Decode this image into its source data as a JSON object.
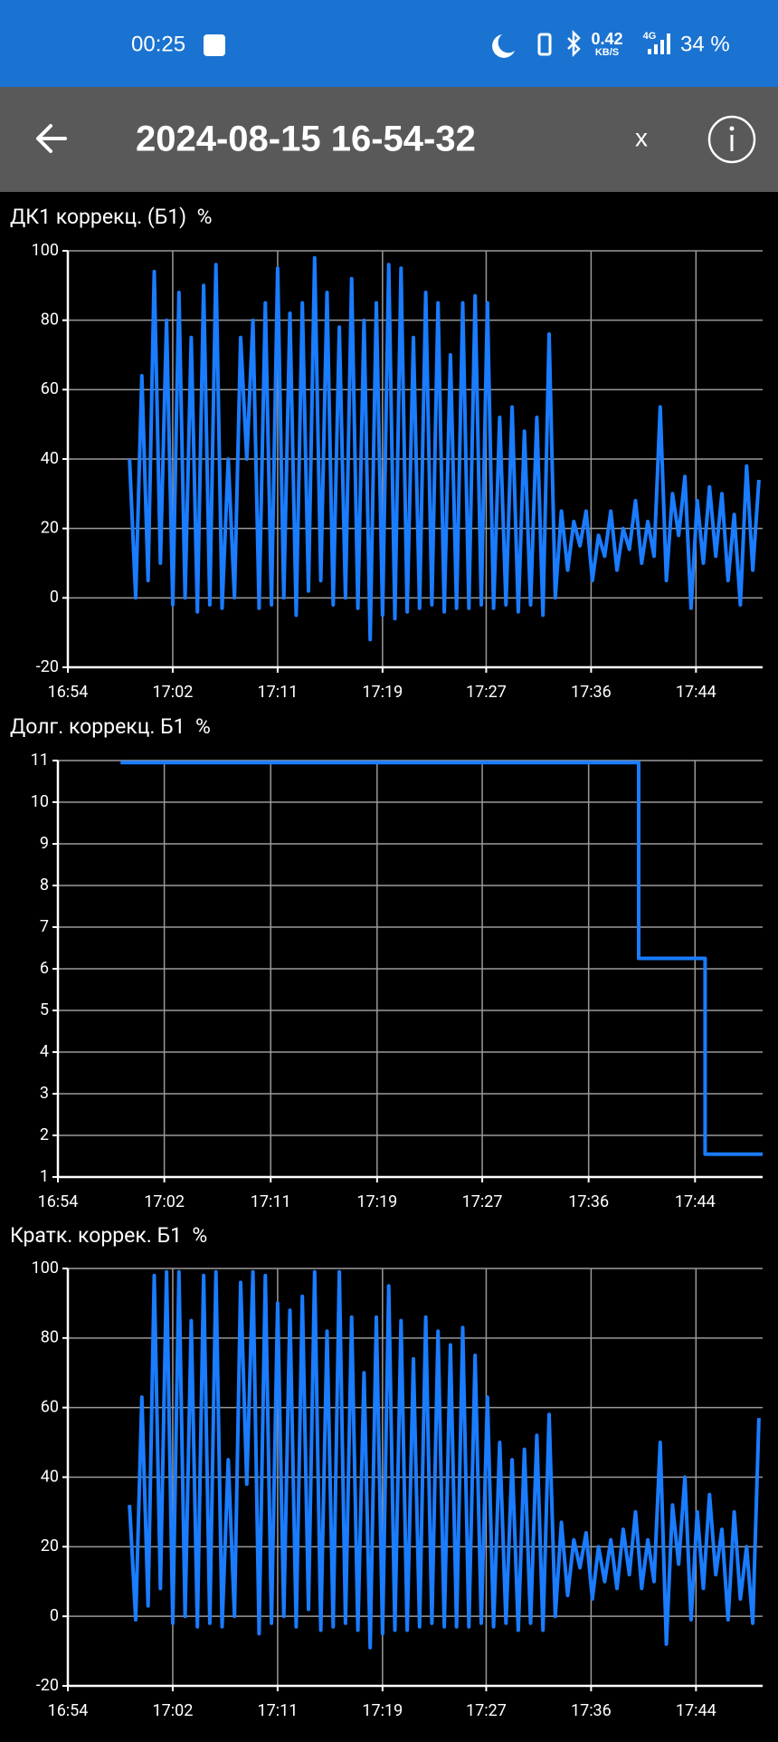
{
  "status_bar": {
    "time": "00:25",
    "speed": "0.42",
    "speed_unit": "KB/S",
    "network": "4G",
    "battery": "34 %"
  },
  "toolbar": {
    "title": "2024-08-15 16-54-32",
    "close": "x"
  },
  "chart_data": [
    {
      "type": "line",
      "title": "ДК1 коррекц. (Б1)  %",
      "x": [
        1019,
        1019.5,
        1020,
        1020.5,
        1021,
        1021.5,
        1022,
        1022.5,
        1023,
        1023.5,
        1024,
        1024.5,
        1025,
        1025.5,
        1026,
        1026.5,
        1027,
        1027.5,
        1028,
        1028.5,
        1029,
        1029.5,
        1030,
        1030.5,
        1031,
        1031.5,
        1032,
        1032.5,
        1033,
        1033.5,
        1034,
        1034.5,
        1035,
        1035.5,
        1036,
        1036.5,
        1037,
        1037.5,
        1038,
        1038.5,
        1039,
        1039.5,
        1040,
        1040.5,
        1041,
        1041.5,
        1042,
        1042.5,
        1043,
        1043.5,
        1044,
        1044.5,
        1045,
        1045.5,
        1046,
        1046.5,
        1047,
        1047.5,
        1048,
        1048.5,
        1049,
        1049.5,
        1050,
        1050.5,
        1051,
        1051.5,
        1052,
        1052.5,
        1053,
        1053.5,
        1054,
        1054.5,
        1055,
        1055.5,
        1056,
        1056.5,
        1057,
        1057.5,
        1058,
        1058.5,
        1059,
        1059.5,
        1060,
        1060.5,
        1061,
        1061.5,
        1062,
        1062.5,
        1063,
        1063.5,
        1064,
        1064.5,
        1065,
        1065.5,
        1066,
        1066.5,
        1067,
        1067.5,
        1068,
        1068.5,
        1069,
        1069.5,
        1070
      ],
      "series": [
        {
          "color": "#1a7cff",
          "values": [
            40,
            0,
            64,
            5,
            94,
            10,
            80,
            -2,
            88,
            0,
            75,
            -4,
            90,
            -2,
            96,
            -3,
            40,
            0,
            75,
            40,
            80,
            -3,
            85,
            -2,
            95,
            0,
            82,
            -5,
            85,
            2,
            98,
            5,
            88,
            -2,
            78,
            0,
            92,
            -3,
            80,
            -12,
            85,
            -5,
            96,
            -6,
            95,
            -4,
            75,
            -3,
            88,
            -2,
            85,
            -4,
            70,
            -3,
            85,
            -3,
            87,
            -2,
            85,
            -3,
            52,
            -2,
            55,
            -4,
            48,
            -2,
            52,
            -5,
            76,
            0,
            25,
            8,
            22,
            15,
            25,
            5,
            18,
            12,
            25,
            8,
            20,
            14,
            28,
            10,
            22,
            12,
            55,
            5,
            30,
            18,
            35,
            -3,
            28,
            10,
            32,
            12,
            30,
            5,
            24,
            -2,
            38,
            8,
            34
          ]
        }
      ],
      "xlim": [
        1014,
        1070.3
      ],
      "xticks": [
        {
          "value": 1014,
          "label": "16:54"
        },
        {
          "value": 1022.5,
          "label": "17:02"
        },
        {
          "value": 1031,
          "label": "17:11"
        },
        {
          "value": 1039.5,
          "label": "17:19"
        },
        {
          "value": 1047.9,
          "label": "17:27"
        },
        {
          "value": 1056.4,
          "label": "17:36"
        },
        {
          "value": 1064.9,
          "label": "17:44"
        }
      ],
      "ylim": [
        -20,
        100
      ],
      "yticks": [
        -20,
        0,
        20,
        40,
        60,
        80,
        100
      ],
      "grid": true
    },
    {
      "type": "line",
      "title": "Долг. коррекц. Б1  %",
      "x": [
        1019,
        1060.4,
        1060.4,
        1065.7,
        1065.7,
        1070.3
      ],
      "series": [
        {
          "color": "#1a7cff",
          "values": [
            10.95,
            10.95,
            6.25,
            6.25,
            1.55,
            1.55
          ]
        }
      ],
      "xlim": [
        1014,
        1070.3
      ],
      "xticks": [
        {
          "value": 1014,
          "label": "16:54"
        },
        {
          "value": 1022.5,
          "label": "17:02"
        },
        {
          "value": 1031,
          "label": "17:11"
        },
        {
          "value": 1039.5,
          "label": "17:19"
        },
        {
          "value": 1047.9,
          "label": "17:27"
        },
        {
          "value": 1056.4,
          "label": "17:36"
        },
        {
          "value": 1064.9,
          "label": "17:44"
        }
      ],
      "ylim": [
        1,
        11
      ],
      "yticks": [
        1,
        2,
        3,
        4,
        5,
        6,
        7,
        8,
        9,
        10,
        11
      ],
      "grid": true
    },
    {
      "type": "line",
      "title": "Кратк. коррек. Б1  %",
      "x": [
        1019,
        1019.5,
        1020,
        1020.5,
        1021,
        1021.5,
        1022,
        1022.5,
        1023,
        1023.5,
        1024,
        1024.5,
        1025,
        1025.5,
        1026,
        1026.5,
        1027,
        1027.5,
        1028,
        1028.5,
        1029,
        1029.5,
        1030,
        1030.5,
        1031,
        1031.5,
        1032,
        1032.5,
        1033,
        1033.5,
        1034,
        1034.5,
        1035,
        1035.5,
        1036,
        1036.5,
        1037,
        1037.5,
        1038,
        1038.5,
        1039,
        1039.5,
        1040,
        1040.5,
        1041,
        1041.5,
        1042,
        1042.5,
        1043,
        1043.5,
        1044,
        1044.5,
        1045,
        1045.5,
        1046,
        1046.5,
        1047,
        1047.5,
        1048,
        1048.5,
        1049,
        1049.5,
        1050,
        1050.5,
        1051,
        1051.5,
        1052,
        1052.5,
        1053,
        1053.5,
        1054,
        1054.5,
        1055,
        1055.5,
        1056,
        1056.5,
        1057,
        1057.5,
        1058,
        1058.5,
        1059,
        1059.5,
        1060,
        1060.5,
        1061,
        1061.5,
        1062,
        1062.5,
        1063,
        1063.5,
        1064,
        1064.5,
        1065,
        1065.5,
        1066,
        1066.5,
        1067,
        1067.5,
        1068,
        1068.5,
        1069,
        1069.5,
        1070
      ],
      "series": [
        {
          "color": "#1a7cff",
          "values": [
            32,
            -1,
            63,
            3,
            98,
            8,
            99,
            -2,
            99,
            0,
            85,
            -3,
            98,
            -2,
            99,
            -3,
            45,
            0,
            96,
            38,
            99,
            -5,
            98,
            -2,
            90,
            0,
            88,
            -3,
            92,
            2,
            99,
            -4,
            82,
            -3,
            99,
            -2,
            86,
            -4,
            70,
            -9,
            86,
            -5,
            95,
            -4,
            85,
            -4,
            74,
            -3,
            86,
            -2,
            82,
            -3,
            78,
            -3,
            83,
            -3,
            75,
            -2,
            63,
            -3,
            50,
            -2,
            45,
            -4,
            48,
            -2,
            52,
            -4,
            58,
            0,
            27,
            6,
            22,
            14,
            24,
            5,
            20,
            10,
            22,
            8,
            25,
            12,
            30,
            8,
            22,
            10,
            50,
            -8,
            32,
            15,
            40,
            -1,
            30,
            8,
            35,
            12,
            25,
            -1,
            30,
            5,
            20,
            -2,
            57
          ]
        }
      ],
      "xlim": [
        1014,
        1070.3
      ],
      "xticks": [
        {
          "value": 1014,
          "label": "16:54"
        },
        {
          "value": 1022.5,
          "label": "17:02"
        },
        {
          "value": 1031,
          "label": "17:11"
        },
        {
          "value": 1039.5,
          "label": "17:19"
        },
        {
          "value": 1047.9,
          "label": "17:27"
        },
        {
          "value": 1056.4,
          "label": "17:36"
        },
        {
          "value": 1064.9,
          "label": "17:44"
        }
      ],
      "ylim": [
        -20,
        100
      ],
      "yticks": [
        -20,
        0,
        20,
        40,
        60,
        80,
        100
      ],
      "grid": true
    }
  ]
}
